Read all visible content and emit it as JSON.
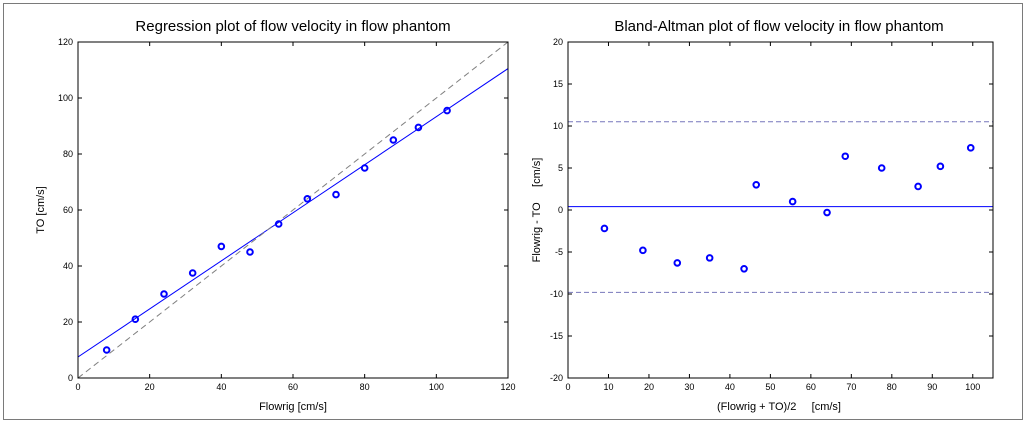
{
  "chart_data": [
    {
      "type": "scatter",
      "title": "Regression plot of flow velocity in flow phantom",
      "xlabel": "Flowrig [cm/s]",
      "ylabel": "TO [cm/s]",
      "xlim": [
        0,
        120
      ],
      "ylim": [
        0,
        120
      ],
      "xticks": [
        0,
        20,
        40,
        60,
        80,
        100,
        120
      ],
      "yticks": [
        0,
        20,
        40,
        60,
        80,
        100,
        120
      ],
      "grid": false,
      "points": {
        "x": [
          8,
          16,
          24,
          32,
          40,
          48,
          56,
          64,
          72,
          80,
          88,
          95,
          103
        ],
        "y": [
          10,
          21,
          30,
          37.5,
          47,
          45,
          55,
          64,
          65.5,
          75,
          85,
          89.5,
          95.5
        ]
      },
      "marker_color": "#0000ff",
      "lines": [
        {
          "kind": "regression",
          "x": [
            0,
            120
          ],
          "y": [
            7.5,
            110.5
          ],
          "color": "#0000ff",
          "dash": "solid"
        },
        {
          "kind": "identity",
          "x": [
            0,
            120
          ],
          "y": [
            0,
            120
          ],
          "color": "#808080",
          "dash": "dashed"
        }
      ]
    },
    {
      "type": "scatter",
      "title": "Bland-Altman plot of flow velocity in flow phantom",
      "xlabel": "(Flowrig + TO)/2     [cm/s]",
      "ylabel": "Flowrig - TO     [cm/s]",
      "xlim": [
        0,
        105
      ],
      "ylim": [
        -20,
        20
      ],
      "xticks": [
        0,
        10,
        20,
        30,
        40,
        50,
        60,
        70,
        80,
        90,
        100
      ],
      "yticks": [
        -20,
        -15,
        -10,
        -5,
        0,
        5,
        10,
        15,
        20
      ],
      "grid": false,
      "points": {
        "x": [
          9,
          18.5,
          27,
          35,
          43.5,
          46.5,
          55.5,
          64,
          68.5,
          77.5,
          86.5,
          92,
          99.5
        ],
        "y": [
          -2.2,
          -4.8,
          -6.3,
          -5.7,
          -7,
          3,
          1,
          -0.3,
          6.4,
          5,
          2.8,
          5.2,
          7.4
        ]
      },
      "marker_color": "#0000ff",
      "hlines": [
        {
          "kind": "mean",
          "y": 0.4,
          "color": "#0000ff",
          "dash": "solid"
        },
        {
          "kind": "upper-limit",
          "y": 10.5,
          "color": "#7777bb",
          "dash": "dashed"
        },
        {
          "kind": "lower-limit",
          "y": -9.8,
          "color": "#7777bb",
          "dash": "dashed"
        }
      ]
    }
  ]
}
